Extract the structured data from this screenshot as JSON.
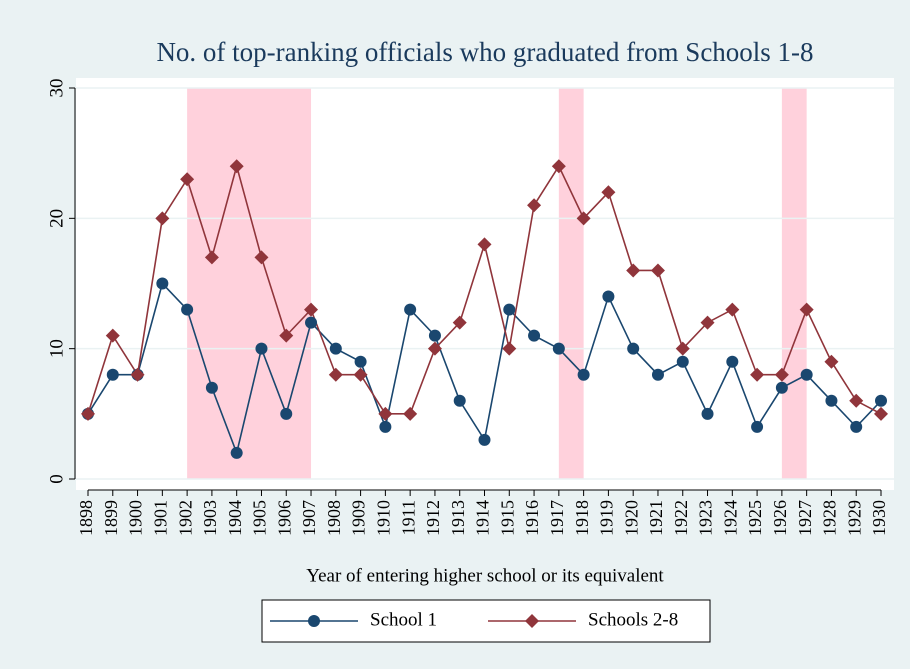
{
  "chart_data": {
    "type": "line",
    "title": "No. of top-ranking officials who graduated from Schools 1-8",
    "x_label": "Year of entering higher school or its equivalent",
    "x": [
      1898,
      1899,
      1900,
      1901,
      1902,
      1903,
      1904,
      1905,
      1906,
      1907,
      1908,
      1909,
      1910,
      1911,
      1912,
      1913,
      1914,
      1915,
      1916,
      1917,
      1918,
      1919,
      1920,
      1921,
      1922,
      1923,
      1924,
      1925,
      1926,
      1927,
      1928,
      1929,
      1930
    ],
    "series": [
      {
        "name": "School 1",
        "color": "#1a476f",
        "marker": "circle",
        "values": [
          5,
          8,
          8,
          15,
          13,
          7,
          2,
          10,
          5,
          12,
          10,
          9,
          4,
          13,
          11,
          6,
          3,
          13,
          11,
          10,
          8,
          14,
          10,
          8,
          9,
          5,
          9,
          4,
          7,
          8,
          6,
          4,
          6
        ]
      },
      {
        "name": "Schools 2-8",
        "color": "#90353b",
        "marker": "diamond",
        "values": [
          5,
          11,
          8,
          20,
          23,
          17,
          24,
          17,
          11,
          13,
          8,
          8,
          5,
          5,
          10,
          12,
          18,
          10,
          21,
          24,
          20,
          22,
          16,
          16,
          10,
          12,
          13,
          8,
          8,
          13,
          9,
          6,
          5
        ]
      }
    ],
    "shaded_ranges": [
      [
        1902,
        1907
      ],
      [
        1917,
        1918
      ],
      [
        1926,
        1927
      ]
    ],
    "shade_color": "#ffd1dc",
    "xlim": [
      1898,
      1930
    ],
    "xticks": [
      1898,
      1899,
      1900,
      1901,
      1902,
      1903,
      1904,
      1905,
      1906,
      1907,
      1908,
      1909,
      1910,
      1911,
      1912,
      1913,
      1914,
      1915,
      1916,
      1917,
      1918,
      1919,
      1920,
      1921,
      1922,
      1923,
      1924,
      1925,
      1926,
      1927,
      1928,
      1929,
      1930
    ],
    "ylim": [
      0,
      30
    ],
    "yticks": [
      0,
      10,
      20,
      30
    ],
    "grid": true,
    "legend": "bottom"
  }
}
